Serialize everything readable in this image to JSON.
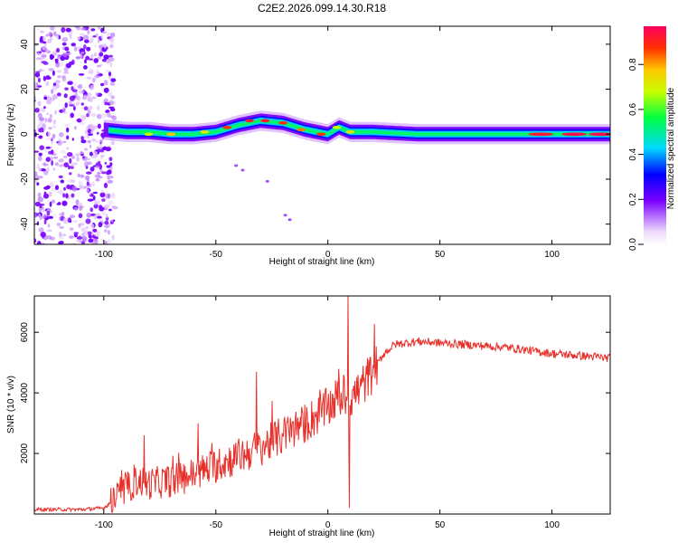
{
  "title": "C2E2.2026.099.14.30.R18",
  "chart_data": [
    {
      "type": "heatmap",
      "xlabel": "Height of straight line (km)",
      "ylabel": "Frequency (Hz)",
      "xlim": [
        -131,
        126
      ],
      "ylim": [
        -49,
        48
      ],
      "xticks": [
        -100,
        -50,
        0,
        50,
        100
      ],
      "yticks": [
        -40,
        -20,
        0,
        20,
        40
      ],
      "colorbar": {
        "label": "Normalized spectral amplitude",
        "range": [
          0.0,
          0.97
        ],
        "ticks": [
          0.0,
          0.2,
          0.4,
          0.6,
          0.8
        ],
        "tick_labels": [
          "0.0",
          "0.2",
          "0.4",
          "0.6",
          "0.8"
        ]
      },
      "ridge": [
        {
          "x": -100,
          "f": 2
        },
        {
          "x": -90,
          "f": 1
        },
        {
          "x": -80,
          "f": 1
        },
        {
          "x": -70,
          "f": 0
        },
        {
          "x": -60,
          "f": 0
        },
        {
          "x": -50,
          "f": 1
        },
        {
          "x": -40,
          "f": 4
        },
        {
          "x": -30,
          "f": 6
        },
        {
          "x": -20,
          "f": 5
        },
        {
          "x": -10,
          "f": 2
        },
        {
          "x": 0,
          "f": 0
        },
        {
          "x": 5,
          "f": 3
        },
        {
          "x": 10,
          "f": 1
        },
        {
          "x": 20,
          "f": 1
        },
        {
          "x": 40,
          "f": 0
        },
        {
          "x": 60,
          "f": 0
        },
        {
          "x": 80,
          "f": 0
        },
        {
          "x": 100,
          "f": 0
        },
        {
          "x": 126,
          "f": 0
        }
      ],
      "ridge_peaks": [
        {
          "x": -80,
          "f": 0,
          "v": 0.7
        },
        {
          "x": -70,
          "f": 0,
          "v": 0.8
        },
        {
          "x": -55,
          "f": 1,
          "v": 0.75
        },
        {
          "x": -45,
          "f": 3,
          "v": 0.9
        },
        {
          "x": -35,
          "f": 6,
          "v": 0.95
        },
        {
          "x": -28,
          "f": 6,
          "v": 0.95
        },
        {
          "x": -20,
          "f": 5,
          "v": 0.9
        },
        {
          "x": -12,
          "f": 2,
          "v": 0.85
        },
        {
          "x": -3,
          "f": 0,
          "v": 0.9
        },
        {
          "x": 4,
          "f": 3,
          "v": 0.7
        },
        {
          "x": 10,
          "f": 1,
          "v": 0.75
        },
        {
          "x": 95,
          "f": 0,
          "v": 0.95
        },
        {
          "x": 110,
          "f": 0,
          "v": 0.97
        },
        {
          "x": 122,
          "f": 0,
          "v": 0.97
        }
      ],
      "scatter_tail": [
        {
          "x": -41,
          "f": -14
        },
        {
          "x": -38,
          "f": -16
        },
        {
          "x": -27,
          "f": -21
        },
        {
          "x": -19,
          "f": -36
        },
        {
          "x": -17,
          "f": -38
        }
      ]
    },
    {
      "type": "line",
      "xlabel": "Height of straight line (km)",
      "ylabel": "SNR (10 * v/v)",
      "xlim": [
        -131,
        126
      ],
      "ylim": [
        0,
        7200
      ],
      "xticks": [
        -100,
        -50,
        0,
        50,
        100
      ],
      "yticks": [
        2000,
        4000,
        6000
      ],
      "color": "#e8302a",
      "series": [
        {
          "name": "SNR",
          "points": [
            {
              "x": -131,
              "y": 150
            },
            {
              "x": -110,
              "y": 150
            },
            {
              "x": -100,
              "y": 200
            },
            {
              "x": -95,
              "y": 500
            },
            {
              "x": -90,
              "y": 800
            },
            {
              "x": -85,
              "y": 1100
            },
            {
              "x": -80,
              "y": 1000
            },
            {
              "x": -70,
              "y": 1100
            },
            {
              "x": -60,
              "y": 1300
            },
            {
              "x": -50,
              "y": 1600
            },
            {
              "x": -40,
              "y": 1900
            },
            {
              "x": -30,
              "y": 2200
            },
            {
              "x": -20,
              "y": 2600
            },
            {
              "x": -10,
              "y": 3000
            },
            {
              "x": 0,
              "y": 3500
            },
            {
              "x": 5,
              "y": 3900
            },
            {
              "x": 10,
              "y": 3800
            },
            {
              "x": 15,
              "y": 4200
            },
            {
              "x": 20,
              "y": 4700
            },
            {
              "x": 25,
              "y": 5300
            },
            {
              "x": 30,
              "y": 5600
            },
            {
              "x": 40,
              "y": 5700
            },
            {
              "x": 60,
              "y": 5600
            },
            {
              "x": 80,
              "y": 5500
            },
            {
              "x": 100,
              "y": 5300
            },
            {
              "x": 126,
              "y": 5150
            }
          ]
        }
      ],
      "spikes": [
        {
          "x": -82,
          "y": 2600
        },
        {
          "x": -58,
          "y": 3000
        },
        {
          "x": -32,
          "y": 4700
        },
        {
          "x": 9,
          "y": 7200
        },
        {
          "x": 9.5,
          "y": 200
        }
      ]
    }
  ]
}
